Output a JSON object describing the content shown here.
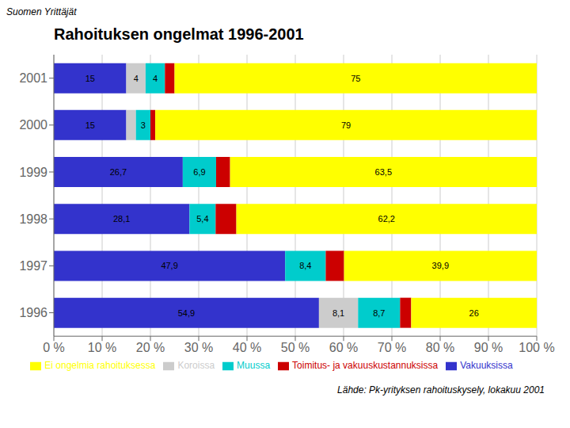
{
  "chart_data": {
    "type": "bar",
    "title": "Rahoituksen ongelmat 1996-2001",
    "subtitle": "Lähde: Pk-yrityksen rahoituskysely, lokakuu 2001",
    "annotations": [
      "Suomen Yrittäjät"
    ],
    "orientation": "horizontal",
    "stacked": true,
    "grid": true,
    "legend": "bottom",
    "data_labels": true,
    "categories": [
      "2001",
      "2000",
      "1999",
      "1998",
      "1997",
      "1996"
    ],
    "series": [
      {
        "name": "Vakuuksissa",
        "color": "#3333cc",
        "values": [
          15,
          15,
          26.7,
          28.1,
          47.9,
          54.9
        ],
        "value_labels": [
          "15",
          "15",
          "26,7",
          "28,1",
          "47,9",
          "54,9"
        ]
      },
      {
        "name": "Koroissa",
        "color": "#cccccc",
        "values": [
          4,
          2,
          0,
          0,
          0,
          8.1
        ],
        "value_labels": [
          "4",
          null,
          null,
          null,
          null,
          "8,1"
        ]
      },
      {
        "name": "Muussa",
        "color": "#00cccc",
        "values": [
          4,
          3,
          6.9,
          5.4,
          8.4,
          8.7
        ],
        "value_labels": [
          "4",
          "3",
          "6,9",
          "5,4",
          "8,4",
          "8,7"
        ]
      },
      {
        "name": "Toimitus- ja vakuuskustannuksissa",
        "color": "#cc0000",
        "values": [
          2,
          1,
          2.9,
          4.3,
          3.8,
          2.3
        ],
        "value_labels": [
          null,
          null,
          null,
          null,
          null,
          null
        ]
      },
      {
        "name": "Ei ongelmia rahoituksessa",
        "color": "#ffff00",
        "values": [
          75,
          79,
          63.5,
          62.2,
          39.9,
          26
        ],
        "value_labels": [
          "75",
          "79",
          "63,5",
          "62,2",
          "39,9",
          "26"
        ]
      }
    ],
    "xlim": [
      0,
      100
    ],
    "xticks": [
      {
        "value": 0,
        "label": "0 %"
      },
      {
        "value": 10,
        "label": "10 %"
      },
      {
        "value": 20,
        "label": "20 %"
      },
      {
        "value": 30,
        "label": "30 %"
      },
      {
        "value": 40,
        "label": "40 %"
      },
      {
        "value": 50,
        "label": "50 %"
      },
      {
        "value": 60,
        "label": "60 %"
      },
      {
        "value": 70,
        "label": "70 %"
      },
      {
        "value": 80,
        "label": "80 %"
      },
      {
        "value": 90,
        "label": "90 %"
      },
      {
        "value": 100,
        "label": "100 %"
      }
    ]
  }
}
